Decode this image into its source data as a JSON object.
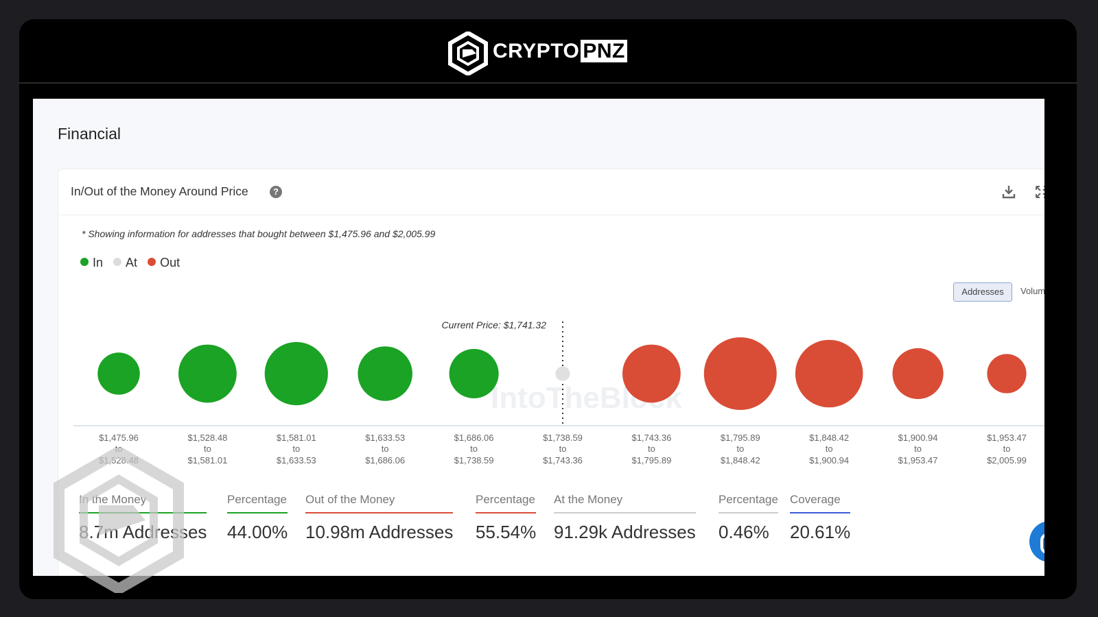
{
  "brand": {
    "word_a": "CRYPTO",
    "word_b": "PNZ"
  },
  "page": {
    "section_title": "Financial"
  },
  "card": {
    "title": "In/Out of the Money Around Price",
    "help": "?",
    "note": "* Showing information for addresses that bought between $1,475.96 and $2,005.99"
  },
  "legend": {
    "in": "In",
    "at": "At",
    "out": "Out"
  },
  "toggles": {
    "addresses": "Addresses",
    "volume": "Volum"
  },
  "colors": {
    "in": "#1aa324",
    "at": "#e0e0e0",
    "out": "#d94d37",
    "coverage": "#3d5bd6"
  },
  "chart_data": {
    "type": "bubble",
    "current_price_label": "Current Price: $1,741.32",
    "watermark": "IntoTheBlock",
    "series": [
      {
        "from": "$1,475.96",
        "to": "$1,528.48",
        "status": "in",
        "relative_size": 0.58
      },
      {
        "from": "$1,528.48",
        "to": "$1,581.01",
        "status": "in",
        "relative_size": 0.8
      },
      {
        "from": "$1,581.01",
        "to": "$1,633.53",
        "status": "in",
        "relative_size": 0.87
      },
      {
        "from": "$1,633.53",
        "to": "$1,686.06",
        "status": "in",
        "relative_size": 0.75
      },
      {
        "from": "$1,686.06",
        "to": "$1,738.59",
        "status": "in",
        "relative_size": 0.68
      },
      {
        "from": "$1,738.59",
        "to": "$1,743.36",
        "status": "at",
        "relative_size": 0.2
      },
      {
        "from": "$1,743.36",
        "to": "$1,795.89",
        "status": "out",
        "relative_size": 0.8
      },
      {
        "from": "$1,795.89",
        "to": "$1,848.42",
        "status": "out",
        "relative_size": 1.0
      },
      {
        "from": "$1,848.42",
        "to": "$1,900.94",
        "status": "out",
        "relative_size": 0.93
      },
      {
        "from": "$1,900.94",
        "to": "$1,953.47",
        "status": "out",
        "relative_size": 0.7
      },
      {
        "from": "$1,953.47",
        "to": "$2,005.99",
        "status": "out",
        "relative_size": 0.54
      }
    ],
    "range_joiner": "to"
  },
  "stats": [
    {
      "label": "In the Money",
      "value": "8.7m Addresses",
      "color": "#1aa324"
    },
    {
      "label": "Percentage",
      "value": "44.00%",
      "color": "#1aa324"
    },
    {
      "label": "Out of the Money",
      "value": "10.98m Addresses",
      "color": "#d94d37"
    },
    {
      "label": "Percentage",
      "value": "55.54%",
      "color": "#d94d37"
    },
    {
      "label": "At the Money",
      "value": "91.29k Addresses",
      "color": "#cccccc"
    },
    {
      "label": "Percentage",
      "value": "0.46%",
      "color": "#cccccc"
    },
    {
      "label": "Coverage",
      "value": "20.61%",
      "color": "#3d5bd6"
    }
  ]
}
